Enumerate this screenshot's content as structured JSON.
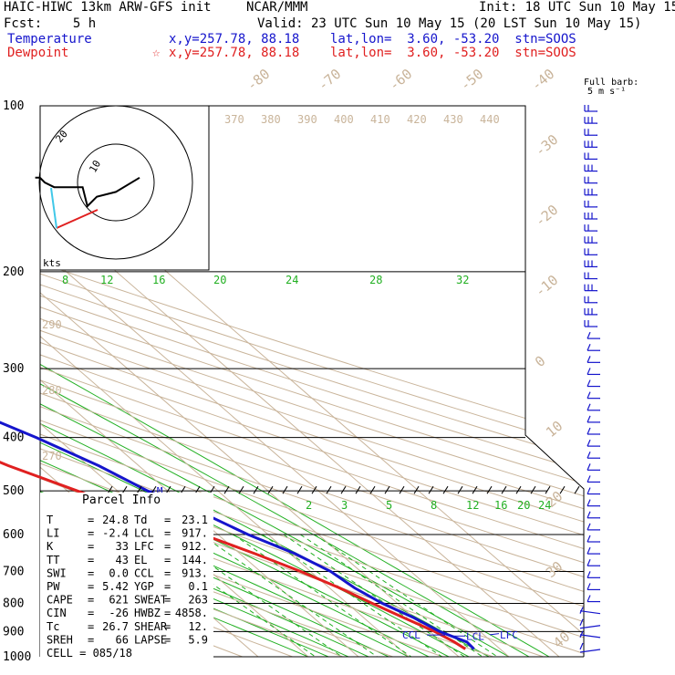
{
  "header": {
    "model": "HAIC-HIWC 13km ARW-GFS init",
    "org": "NCAR/MMM",
    "init": "Init: 18 UTC Sun 10 May 15",
    "fcst": "Fcst:    5 h",
    "valid": "Valid: 23 UTC Sun 10 May 15 (20 LST Sun 10 May 15)",
    "temp_label": "Temperature",
    "temp_info": "x,y=257.78, 88.18    lat,lon=  3.60, -53.20  stn=SOOS",
    "dew_label": "Dewpoint",
    "dew_marker": "☆",
    "dew_info": "x,y=257.78, 88.18    lat,lon=  3.60, -53.20  stn=SOOS",
    "barb_label_1": "Full barb:",
    "barb_label_2": "5 m s⁻¹"
  },
  "chart_data": {
    "type": "skew-t log-p sounding",
    "pressure_levels": [
      100,
      200,
      300,
      400,
      500,
      600,
      700,
      800,
      900,
      1000
    ],
    "isotherm_labels_top": [
      "-80",
      "-70",
      "-60",
      "-50",
      "-40"
    ],
    "isotherm_labels_right": [
      "-30",
      "-20",
      "-10",
      "0",
      "10",
      "20",
      "30",
      "40"
    ],
    "theta_labels": [
      "370",
      "380",
      "390",
      "400",
      "410",
      "420",
      "430",
      "440"
    ],
    "dry_adiabat_labels": [
      "290",
      "280",
      "270"
    ],
    "mixing_ratio_labels_upper": [
      "8",
      "12",
      "16",
      "20",
      "24",
      "28",
      "32"
    ],
    "mixing_ratio_labels_lower": [
      "2",
      "3",
      "5",
      "8",
      "12",
      "16",
      "20",
      "24"
    ],
    "temperature_color": "#1515cc",
    "dewpoint_color": "#e02020",
    "temperature_profile": [
      [
        100,
        -81
      ],
      [
        120,
        -77
      ],
      [
        150,
        -68
      ],
      [
        200,
        -52
      ],
      [
        250,
        -40
      ],
      [
        300,
        -31
      ],
      [
        350,
        -22
      ],
      [
        400,
        -14
      ],
      [
        450,
        -8
      ],
      [
        500,
        -4
      ],
      [
        550,
        2
      ],
      [
        600,
        6
      ],
      [
        650,
        11
      ],
      [
        700,
        14
      ],
      [
        750,
        15
      ],
      [
        800,
        17
      ],
      [
        850,
        20
      ],
      [
        900,
        22
      ],
      [
        940,
        25
      ],
      [
        968,
        24.8
      ]
    ],
    "dewpoint_profile": [
      [
        100,
        -93
      ],
      [
        120,
        -95
      ],
      [
        140,
        -92
      ],
      [
        165,
        -85
      ],
      [
        195,
        -80
      ],
      [
        215,
        -79
      ],
      [
        245,
        -84
      ],
      [
        270,
        -76
      ],
      [
        300,
        -63
      ],
      [
        350,
        -47
      ],
      [
        400,
        -33
      ],
      [
        450,
        -26
      ],
      [
        500,
        -18
      ],
      [
        550,
        -11
      ],
      [
        600,
        -3
      ],
      [
        650,
        3
      ],
      [
        700,
        8
      ],
      [
        750,
        12
      ],
      [
        800,
        15
      ],
      [
        850,
        18
      ],
      [
        900,
        21
      ],
      [
        940,
        22.5
      ],
      [
        968,
        23.1
      ]
    ],
    "annotations": {
      "el": "EL",
      "m": "M",
      "ccl": "CCL",
      "lcl": "LCL",
      "lfc": "LFC"
    },
    "hodograph": {
      "ring_labels": [
        "10",
        "20"
      ],
      "units": "kts",
      "trace": [
        [
          5,
          -1
        ],
        [
          0,
          2
        ],
        [
          -4,
          3
        ],
        [
          -6,
          5
        ],
        [
          -7,
          1
        ],
        [
          -10,
          1
        ],
        [
          -13,
          1
        ],
        [
          -15,
          0
        ],
        [
          -16,
          -1
        ],
        [
          -17,
          -1
        ]
      ],
      "storm_vector_color": "#e02020",
      "low_level_color": "#40c8e8"
    },
    "wind_barb_levels": 46
  },
  "parcel_info": {
    "title": "Parcel Info",
    "rows": [
      [
        "T",
        "24.8",
        "Td",
        "23.1"
      ],
      [
        "LI",
        "-2.4",
        "LCL",
        "917."
      ],
      [
        "K",
        "33",
        "LFC",
        "912."
      ],
      [
        "TT",
        "43",
        "EL",
        "144."
      ],
      [
        "SWI",
        "0.0",
        "CCL",
        "913."
      ],
      [
        "PW",
        "5.42",
        "YGP",
        "0.1"
      ],
      [
        "CAPE",
        "621",
        "SWEAT",
        "263"
      ],
      [
        "CIN",
        "-26",
        "HWBZ",
        "4858."
      ],
      [
        "Tc",
        "26.7",
        "SHEAR",
        "12."
      ],
      [
        "SREH",
        "66",
        "LAPSE",
        "5.9"
      ]
    ],
    "cell": "CELL = 085/18"
  }
}
